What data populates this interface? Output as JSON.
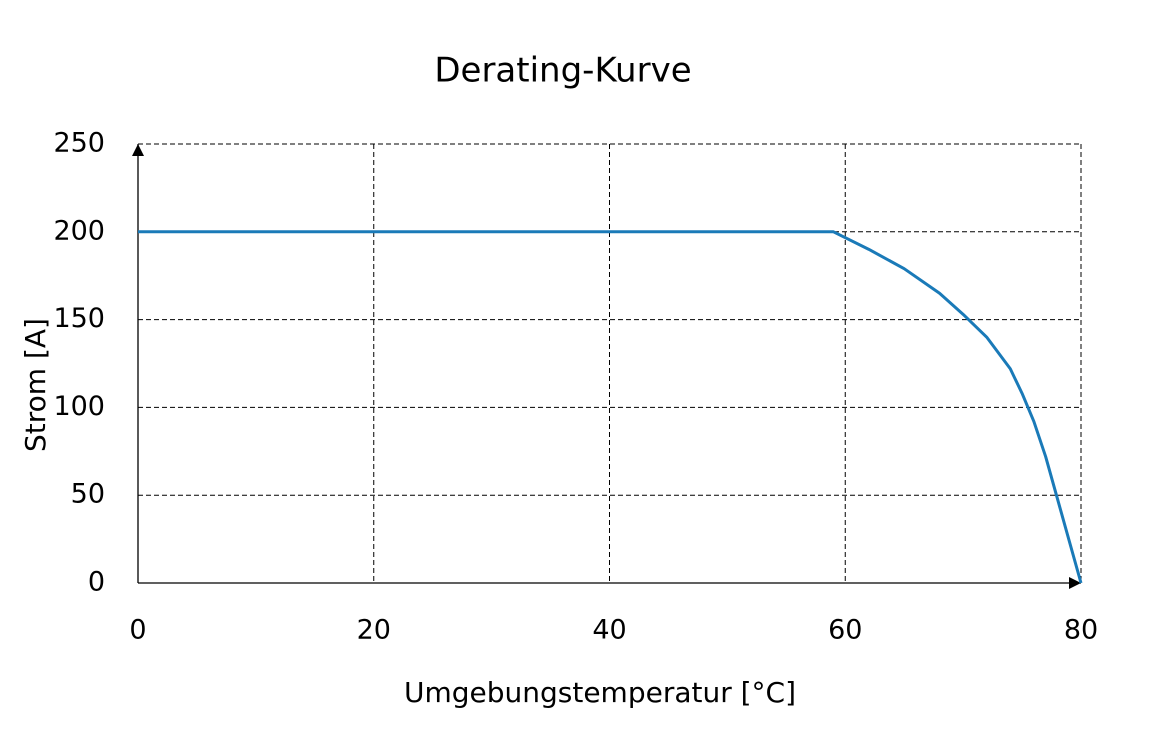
{
  "chart_data": {
    "type": "line",
    "title": "Derating-Kurve",
    "x_label": "Umgebungstemperatur [°C]",
    "y_label": "Strom [A]",
    "x": [
      0,
      59,
      62,
      65,
      68,
      70,
      72,
      74,
      75,
      76,
      77,
      78,
      79,
      80
    ],
    "values": [
      200,
      200,
      190,
      179,
      165,
      153,
      140,
      122,
      108,
      92,
      72,
      48,
      24,
      0
    ],
    "color": "#1a7ab8",
    "xlim": [
      0,
      80
    ],
    "xticks": [
      0,
      20,
      40,
      60,
      80
    ],
    "ylim": [
      0,
      250
    ],
    "yticks": [
      0,
      50,
      100,
      150,
      200,
      250
    ],
    "grid": true
  }
}
